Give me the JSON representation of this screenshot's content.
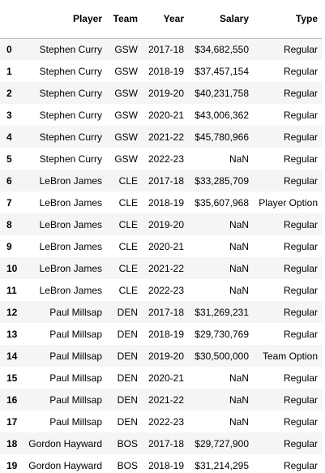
{
  "columns": {
    "index": "",
    "player": "Player",
    "team": "Team",
    "year": "Year",
    "salary": "Salary",
    "type": "Type"
  },
  "rows": [
    {
      "index": "0",
      "player": "Stephen Curry",
      "team": "GSW",
      "year": "2017-18",
      "salary": "$34,682,550",
      "type": "Regular"
    },
    {
      "index": "1",
      "player": "Stephen Curry",
      "team": "GSW",
      "year": "2018-19",
      "salary": "$37,457,154",
      "type": "Regular"
    },
    {
      "index": "2",
      "player": "Stephen Curry",
      "team": "GSW",
      "year": "2019-20",
      "salary": "$40,231,758",
      "type": "Regular"
    },
    {
      "index": "3",
      "player": "Stephen Curry",
      "team": "GSW",
      "year": "2020-21",
      "salary": "$43,006,362",
      "type": "Regular"
    },
    {
      "index": "4",
      "player": "Stephen Curry",
      "team": "GSW",
      "year": "2021-22",
      "salary": "$45,780,966",
      "type": "Regular"
    },
    {
      "index": "5",
      "player": "Stephen Curry",
      "team": "GSW",
      "year": "2022-23",
      "salary": "NaN",
      "type": "Regular"
    },
    {
      "index": "6",
      "player": "LeBron James",
      "team": "CLE",
      "year": "2017-18",
      "salary": "$33,285,709",
      "type": "Regular"
    },
    {
      "index": "7",
      "player": "LeBron James",
      "team": "CLE",
      "year": "2018-19",
      "salary": "$35,607,968",
      "type": "Player Option"
    },
    {
      "index": "8",
      "player": "LeBron James",
      "team": "CLE",
      "year": "2019-20",
      "salary": "NaN",
      "type": "Regular"
    },
    {
      "index": "9",
      "player": "LeBron James",
      "team": "CLE",
      "year": "2020-21",
      "salary": "NaN",
      "type": "Regular"
    },
    {
      "index": "10",
      "player": "LeBron James",
      "team": "CLE",
      "year": "2021-22",
      "salary": "NaN",
      "type": "Regular"
    },
    {
      "index": "11",
      "player": "LeBron James",
      "team": "CLE",
      "year": "2022-23",
      "salary": "NaN",
      "type": "Regular"
    },
    {
      "index": "12",
      "player": "Paul Millsap",
      "team": "DEN",
      "year": "2017-18",
      "salary": "$31,269,231",
      "type": "Regular"
    },
    {
      "index": "13",
      "player": "Paul Millsap",
      "team": "DEN",
      "year": "2018-19",
      "salary": "$29,730,769",
      "type": "Regular"
    },
    {
      "index": "14",
      "player": "Paul Millsap",
      "team": "DEN",
      "year": "2019-20",
      "salary": "$30,500,000",
      "type": "Team Option"
    },
    {
      "index": "15",
      "player": "Paul Millsap",
      "team": "DEN",
      "year": "2020-21",
      "salary": "NaN",
      "type": "Regular"
    },
    {
      "index": "16",
      "player": "Paul Millsap",
      "team": "DEN",
      "year": "2021-22",
      "salary": "NaN",
      "type": "Regular"
    },
    {
      "index": "17",
      "player": "Paul Millsap",
      "team": "DEN",
      "year": "2022-23",
      "salary": "NaN",
      "type": "Regular"
    },
    {
      "index": "18",
      "player": "Gordon Hayward",
      "team": "BOS",
      "year": "2017-18",
      "salary": "$29,727,900",
      "type": "Regular"
    },
    {
      "index": "19",
      "player": "Gordon Hayward",
      "team": "BOS",
      "year": "2018-19",
      "salary": "$31,214,295",
      "type": "Regular"
    }
  ]
}
